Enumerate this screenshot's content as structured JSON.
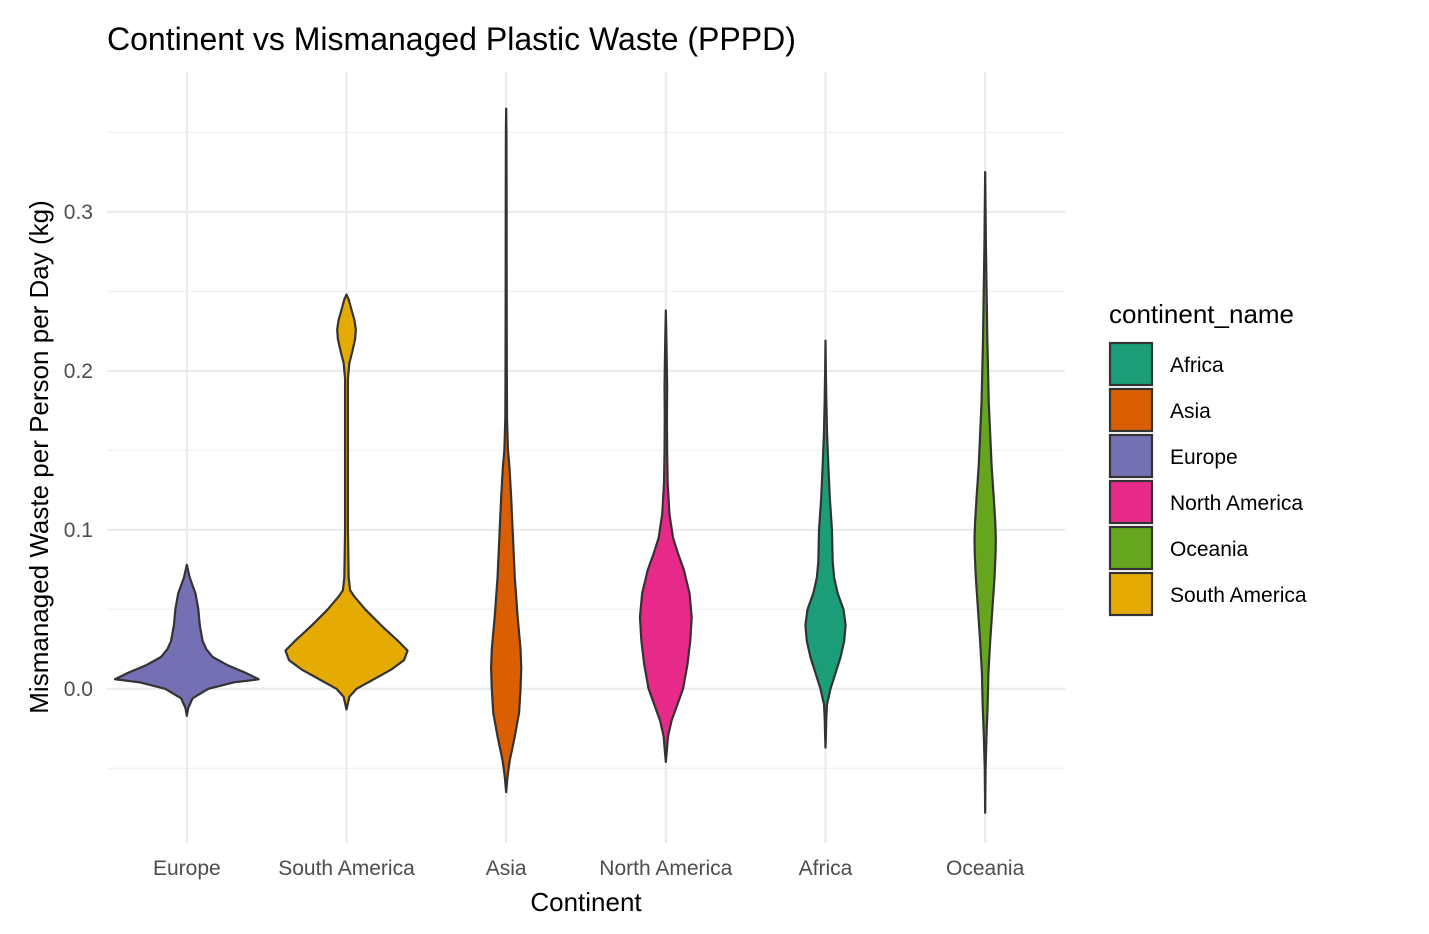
{
  "chart_data": {
    "type": "violin",
    "title": "Continent vs Mismanaged Plastic Waste (PPPD)",
    "xlabel": "Continent",
    "ylabel": "Mismanaged Waste per Person per Day (kg)",
    "categories": [
      "Europe",
      "South America",
      "Asia",
      "North America",
      "Africa",
      "Oceania"
    ],
    "ylim": [
      -0.097,
      0.388
    ],
    "yticks": [
      0.0,
      0.1,
      0.2,
      0.3
    ],
    "ytick_labels": [
      "0.0",
      "0.1",
      "0.2",
      "0.3"
    ],
    "grid": true,
    "legend": {
      "title": "continent_name",
      "position": "right",
      "entries": [
        "Africa",
        "Asia",
        "Europe",
        "North America",
        "Oceania",
        "South America"
      ]
    },
    "colors": {
      "Africa": "#1b9e77",
      "Asia": "#d95f02",
      "Europe": "#7570b3",
      "North America": "#e7298a",
      "Oceania": "#66a61e",
      "South America": "#e6ab02"
    },
    "violins": [
      {
        "category": "Europe",
        "range": [
          -0.017,
          0.078
        ],
        "profile": [
          [
            -0.017,
            0.0
          ],
          [
            -0.012,
            0.02
          ],
          [
            -0.006,
            0.08
          ],
          [
            0.0,
            0.3
          ],
          [
            0.004,
            0.65
          ],
          [
            0.006,
            1.0
          ],
          [
            0.01,
            0.82
          ],
          [
            0.015,
            0.56
          ],
          [
            0.02,
            0.36
          ],
          [
            0.025,
            0.27
          ],
          [
            0.03,
            0.22
          ],
          [
            0.04,
            0.18
          ],
          [
            0.05,
            0.16
          ],
          [
            0.06,
            0.12
          ],
          [
            0.065,
            0.08
          ],
          [
            0.07,
            0.04
          ],
          [
            0.075,
            0.015
          ],
          [
            0.078,
            0.0
          ]
        ]
      },
      {
        "category": "South America",
        "range": [
          -0.013,
          0.248
        ],
        "profile": [
          [
            -0.013,
            0.0
          ],
          [
            -0.005,
            0.04
          ],
          [
            0.0,
            0.14
          ],
          [
            0.006,
            0.38
          ],
          [
            0.012,
            0.62
          ],
          [
            0.018,
            0.8
          ],
          [
            0.024,
            0.85
          ],
          [
            0.03,
            0.72
          ],
          [
            0.04,
            0.48
          ],
          [
            0.05,
            0.26
          ],
          [
            0.058,
            0.11
          ],
          [
            0.062,
            0.05
          ],
          [
            0.07,
            0.03
          ],
          [
            0.1,
            0.02
          ],
          [
            0.15,
            0.02
          ],
          [
            0.195,
            0.02
          ],
          [
            0.205,
            0.04
          ],
          [
            0.212,
            0.08
          ],
          [
            0.22,
            0.12
          ],
          [
            0.226,
            0.13
          ],
          [
            0.232,
            0.11
          ],
          [
            0.24,
            0.06
          ],
          [
            0.245,
            0.03
          ],
          [
            0.248,
            0.0
          ]
        ]
      },
      {
        "category": "Asia",
        "range": [
          -0.065,
          0.365
        ],
        "profile": [
          [
            -0.065,
            0.0
          ],
          [
            -0.055,
            0.02
          ],
          [
            -0.045,
            0.05
          ],
          [
            -0.03,
            0.12
          ],
          [
            -0.015,
            0.18
          ],
          [
            0.0,
            0.2
          ],
          [
            0.013,
            0.21
          ],
          [
            0.025,
            0.2
          ],
          [
            0.045,
            0.16
          ],
          [
            0.07,
            0.12
          ],
          [
            0.1,
            0.09
          ],
          [
            0.12,
            0.07
          ],
          [
            0.14,
            0.045
          ],
          [
            0.15,
            0.025
          ],
          [
            0.17,
            0.012
          ],
          [
            0.2,
            0.009
          ],
          [
            0.25,
            0.007
          ],
          [
            0.3,
            0.006
          ],
          [
            0.33,
            0.005
          ],
          [
            0.35,
            0.004
          ],
          [
            0.365,
            0.0
          ]
        ]
      },
      {
        "category": "North America",
        "range": [
          -0.046,
          0.238
        ],
        "profile": [
          [
            -0.046,
            0.0
          ],
          [
            -0.04,
            0.012
          ],
          [
            -0.03,
            0.03
          ],
          [
            -0.02,
            0.08
          ],
          [
            -0.01,
            0.16
          ],
          [
            0.0,
            0.24
          ],
          [
            0.015,
            0.3
          ],
          [
            0.03,
            0.34
          ],
          [
            0.045,
            0.36
          ],
          [
            0.06,
            0.33
          ],
          [
            0.075,
            0.25
          ],
          [
            0.085,
            0.17
          ],
          [
            0.095,
            0.1
          ],
          [
            0.11,
            0.05
          ],
          [
            0.13,
            0.025
          ],
          [
            0.15,
            0.018
          ],
          [
            0.17,
            0.015
          ],
          [
            0.19,
            0.018
          ],
          [
            0.2,
            0.015
          ],
          [
            0.215,
            0.01
          ],
          [
            0.225,
            0.006
          ],
          [
            0.238,
            0.0
          ]
        ]
      },
      {
        "category": "Africa",
        "range": [
          -0.037,
          0.219
        ],
        "profile": [
          [
            -0.037,
            0.0
          ],
          [
            -0.03,
            0.005
          ],
          [
            -0.02,
            0.01
          ],
          [
            -0.01,
            0.02
          ],
          [
            0.0,
            0.07
          ],
          [
            0.01,
            0.14
          ],
          [
            0.02,
            0.21
          ],
          [
            0.03,
            0.26
          ],
          [
            0.04,
            0.28
          ],
          [
            0.05,
            0.25
          ],
          [
            0.06,
            0.17
          ],
          [
            0.07,
            0.12
          ],
          [
            0.08,
            0.1
          ],
          [
            0.09,
            0.095
          ],
          [
            0.1,
            0.09
          ],
          [
            0.12,
            0.06
          ],
          [
            0.14,
            0.04
          ],
          [
            0.16,
            0.022
          ],
          [
            0.18,
            0.012
          ],
          [
            0.2,
            0.005
          ],
          [
            0.219,
            0.0
          ]
        ]
      },
      {
        "category": "Oceania",
        "range": [
          -0.078,
          0.325
        ],
        "profile": [
          [
            -0.078,
            0.0
          ],
          [
            -0.05,
            0.006
          ],
          [
            -0.03,
            0.018
          ],
          [
            -0.01,
            0.035
          ],
          [
            0.0,
            0.04
          ],
          [
            0.01,
            0.045
          ],
          [
            0.03,
            0.07
          ],
          [
            0.05,
            0.1
          ],
          [
            0.07,
            0.13
          ],
          [
            0.085,
            0.145
          ],
          [
            0.095,
            0.148
          ],
          [
            0.105,
            0.14
          ],
          [
            0.12,
            0.12
          ],
          [
            0.14,
            0.09
          ],
          [
            0.16,
            0.07
          ],
          [
            0.18,
            0.05
          ],
          [
            0.2,
            0.04
          ],
          [
            0.22,
            0.03
          ],
          [
            0.25,
            0.02
          ],
          [
            0.28,
            0.01
          ],
          [
            0.3,
            0.006
          ],
          [
            0.325,
            0.0
          ]
        ]
      }
    ]
  }
}
